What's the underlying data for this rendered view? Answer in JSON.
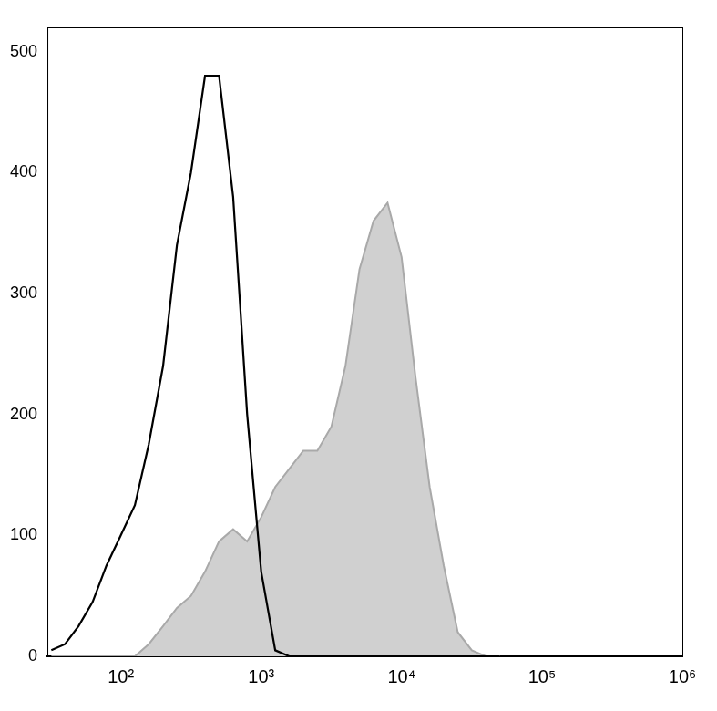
{
  "chart_data": {
    "type": "line",
    "log": "x",
    "grid": false,
    "xlim": [
      30,
      1000000
    ],
    "xticks": [
      {
        "value": 100,
        "label": "10²"
      },
      {
        "value": 1000,
        "label": "10³"
      },
      {
        "value": 10000,
        "label": "10⁴"
      },
      {
        "value": 100000,
        "label": "10⁵"
      },
      {
        "value": 1000000,
        "label": "10⁶"
      }
    ],
    "ylim": [
      0,
      520
    ],
    "yticks": [
      0,
      100,
      200,
      300,
      400,
      500
    ],
    "x": [
      32,
      40,
      50,
      63,
      79,
      100,
      126,
      158,
      200,
      251,
      316,
      398,
      501,
      631,
      794,
      1000,
      1259,
      1585,
      1995,
      2512,
      3162,
      3981,
      5012,
      6310,
      7943,
      10000,
      12589,
      15849,
      19953,
      25119,
      31623,
      39811,
      50119
    ],
    "series": [
      {
        "color": "#000000",
        "values": [
          5,
          10,
          25,
          45,
          75,
          100,
          125,
          175,
          240,
          340,
          400,
          480,
          480,
          380,
          200,
          70,
          5,
          0,
          0,
          0,
          0,
          0,
          0,
          0,
          0,
          0,
          0,
          0,
          0,
          0,
          0,
          0,
          0
        ]
      },
      {
        "color": "#a9a9a9",
        "type": "area",
        "values": [
          0,
          0,
          0,
          0,
          0,
          0,
          0,
          10,
          25,
          40,
          50,
          70,
          95,
          105,
          95,
          115,
          140,
          155,
          170,
          170,
          190,
          240,
          320,
          360,
          375,
          330,
          230,
          140,
          75,
          20,
          5,
          0,
          0
        ]
      }
    ]
  }
}
